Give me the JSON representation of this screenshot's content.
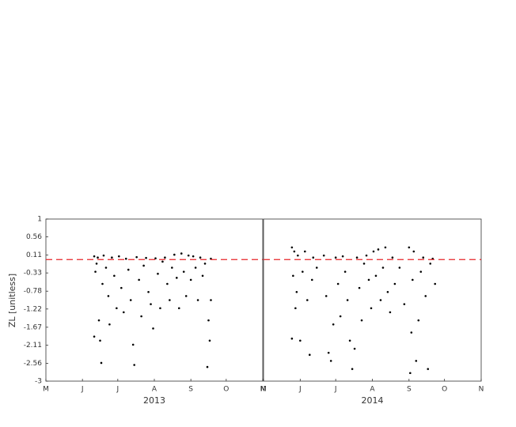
{
  "chart_data": [
    {
      "type": "scatter",
      "ylabel": "ZL [unitless]",
      "xlabel": "2013",
      "color": "#000000",
      "xlim": [
        121,
        305
      ],
      "ylim": [
        -3,
        1
      ],
      "xticks": [
        {
          "value": 121,
          "label": "M"
        },
        {
          "value": 152,
          "label": "J"
        },
        {
          "value": 182,
          "label": "J"
        },
        {
          "value": 213,
          "label": "A"
        },
        {
          "value": 244,
          "label": "S"
        },
        {
          "value": 274,
          "label": "O"
        },
        {
          "value": 305,
          "label": "N"
        }
      ],
      "yticks": [
        1,
        0.56,
        0.11,
        -0.33,
        -0.78,
        -1.22,
        -1.67,
        -2.11,
        -2.56,
        -3
      ],
      "hline": 0,
      "hline_color": "#e8262a",
      "x": [
        162,
        162,
        163,
        164,
        165,
        166,
        167,
        168,
        169,
        170,
        172,
        174,
        175,
        177,
        179,
        181,
        183,
        185,
        187,
        189,
        191,
        193,
        195,
        196,
        198,
        200,
        202,
        204,
        206,
        208,
        210,
        212,
        214,
        216,
        218,
        220,
        222,
        224,
        226,
        228,
        230,
        232,
        234,
        236,
        238,
        240,
        242,
        244,
        246,
        248,
        250,
        252,
        254,
        256,
        258,
        259,
        260,
        261,
        261
      ],
      "values": [
        0.08,
        -1.9,
        -0.3,
        -0.1,
        0.05,
        -1.5,
        -2.0,
        -2.55,
        -0.6,
        0.1,
        -0.2,
        -0.9,
        -1.6,
        0.05,
        -0.4,
        -1.2,
        0.08,
        -0.7,
        -1.3,
        0.02,
        -0.25,
        -1.0,
        -2.1,
        -2.6,
        0.06,
        -0.5,
        -1.4,
        -0.15,
        0.04,
        -0.8,
        -1.1,
        -1.7,
        0.03,
        -0.35,
        -1.2,
        -0.05,
        0.05,
        -0.6,
        -1.0,
        -0.2,
        0.12,
        -0.45,
        -1.2,
        0.15,
        -0.3,
        -0.9,
        0.1,
        -0.5,
        0.08,
        -0.2,
        -1.0,
        0.05,
        -0.4,
        -0.1,
        -2.65,
        -1.5,
        -2.0,
        -1.0,
        0.02
      ]
    },
    {
      "type": "scatter",
      "xlabel": "2014",
      "color": "#000000",
      "xlim": [
        121,
        305
      ],
      "ylim": [
        -3,
        1
      ],
      "xticks": [
        {
          "value": 121,
          "label": "M"
        },
        {
          "value": 152,
          "label": "J"
        },
        {
          "value": 182,
          "label": "J"
        },
        {
          "value": 213,
          "label": "A"
        },
        {
          "value": 244,
          "label": "S"
        },
        {
          "value": 274,
          "label": "O"
        },
        {
          "value": 305,
          "label": "N"
        }
      ],
      "hline": 0,
      "hline_color": "#e8262a",
      "x": [
        145,
        145,
        146,
        147,
        148,
        149,
        150,
        152,
        154,
        156,
        158,
        160,
        162,
        163,
        166,
        172,
        174,
        176,
        178,
        180,
        182,
        184,
        186,
        188,
        190,
        192,
        194,
        196,
        198,
        200,
        202,
        204,
        206,
        208,
        210,
        212,
        214,
        216,
        218,
        220,
        222,
        224,
        226,
        228,
        230,
        232,
        236,
        240,
        244,
        245,
        246,
        247,
        248,
        250,
        252,
        254,
        256,
        258,
        260,
        262,
        264,
        266
      ],
      "values": [
        0.3,
        -1.95,
        -0.4,
        0.2,
        -1.2,
        -0.8,
        0.1,
        -2.0,
        -0.3,
        0.2,
        -1.0,
        -2.35,
        -0.5,
        0.05,
        -0.2,
        0.1,
        -0.9,
        -2.3,
        -2.5,
        -1.6,
        0.05,
        -0.6,
        -1.4,
        0.08,
        -0.3,
        -1.0,
        -2.0,
        -2.7,
        -2.2,
        0.05,
        -0.7,
        -1.5,
        -0.1,
        0.1,
        -0.5,
        -1.2,
        0.2,
        -0.4,
        0.25,
        -1.0,
        -0.2,
        0.3,
        -0.8,
        -1.3,
        0.05,
        -0.6,
        -0.2,
        -1.1,
        0.3,
        -2.8,
        -1.8,
        -0.5,
        0.2,
        -2.5,
        -1.5,
        -0.3,
        0.05,
        -0.9,
        -2.7,
        -0.1,
        0.02,
        -0.6
      ]
    }
  ]
}
